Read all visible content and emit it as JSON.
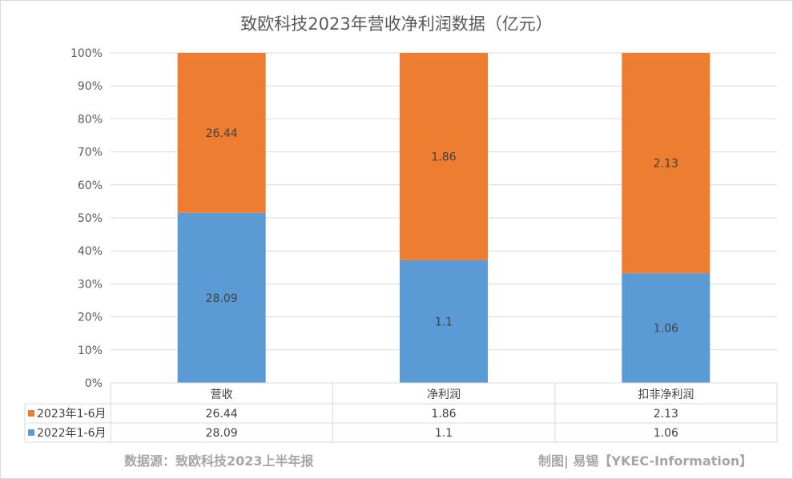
{
  "chart_data": {
    "type": "bar",
    "stacked": "percent",
    "title": "致欧科技2023年营收净利润数据（亿元）",
    "categories": [
      "营收",
      "净利润",
      "扣非净利润"
    ],
    "series": [
      {
        "name": "2022年1-6月",
        "values": [
          28.09,
          1.1,
          1.06
        ],
        "color": "#5b9bd5",
        "value_labels": [
          "28.09",
          "1.1",
          "1.06"
        ]
      },
      {
        "name": "2023年1-6月",
        "values": [
          26.44,
          1.86,
          2.13
        ],
        "color": "#ed7d31",
        "value_labels": [
          "26.44",
          "1.86",
          "2.13"
        ]
      }
    ],
    "yticks": [
      "0%",
      "10%",
      "20%",
      "30%",
      "40%",
      "50%",
      "60%",
      "70%",
      "80%",
      "90%",
      "100%"
    ],
    "ylim": [
      0,
      100
    ],
    "grid": true,
    "data_table": true,
    "table_rows": [
      {
        "series": "2023年1-6月",
        "values": [
          "26.44",
          "1.86",
          "2.13"
        ]
      },
      {
        "series": "2022年1-6月",
        "values": [
          "28.09",
          "1.1",
          "1.06"
        ]
      }
    ]
  },
  "footer": {
    "source": "数据源：致欧科技2023上半年报",
    "credit": "制图| 易锡【YKEC-Information】"
  }
}
